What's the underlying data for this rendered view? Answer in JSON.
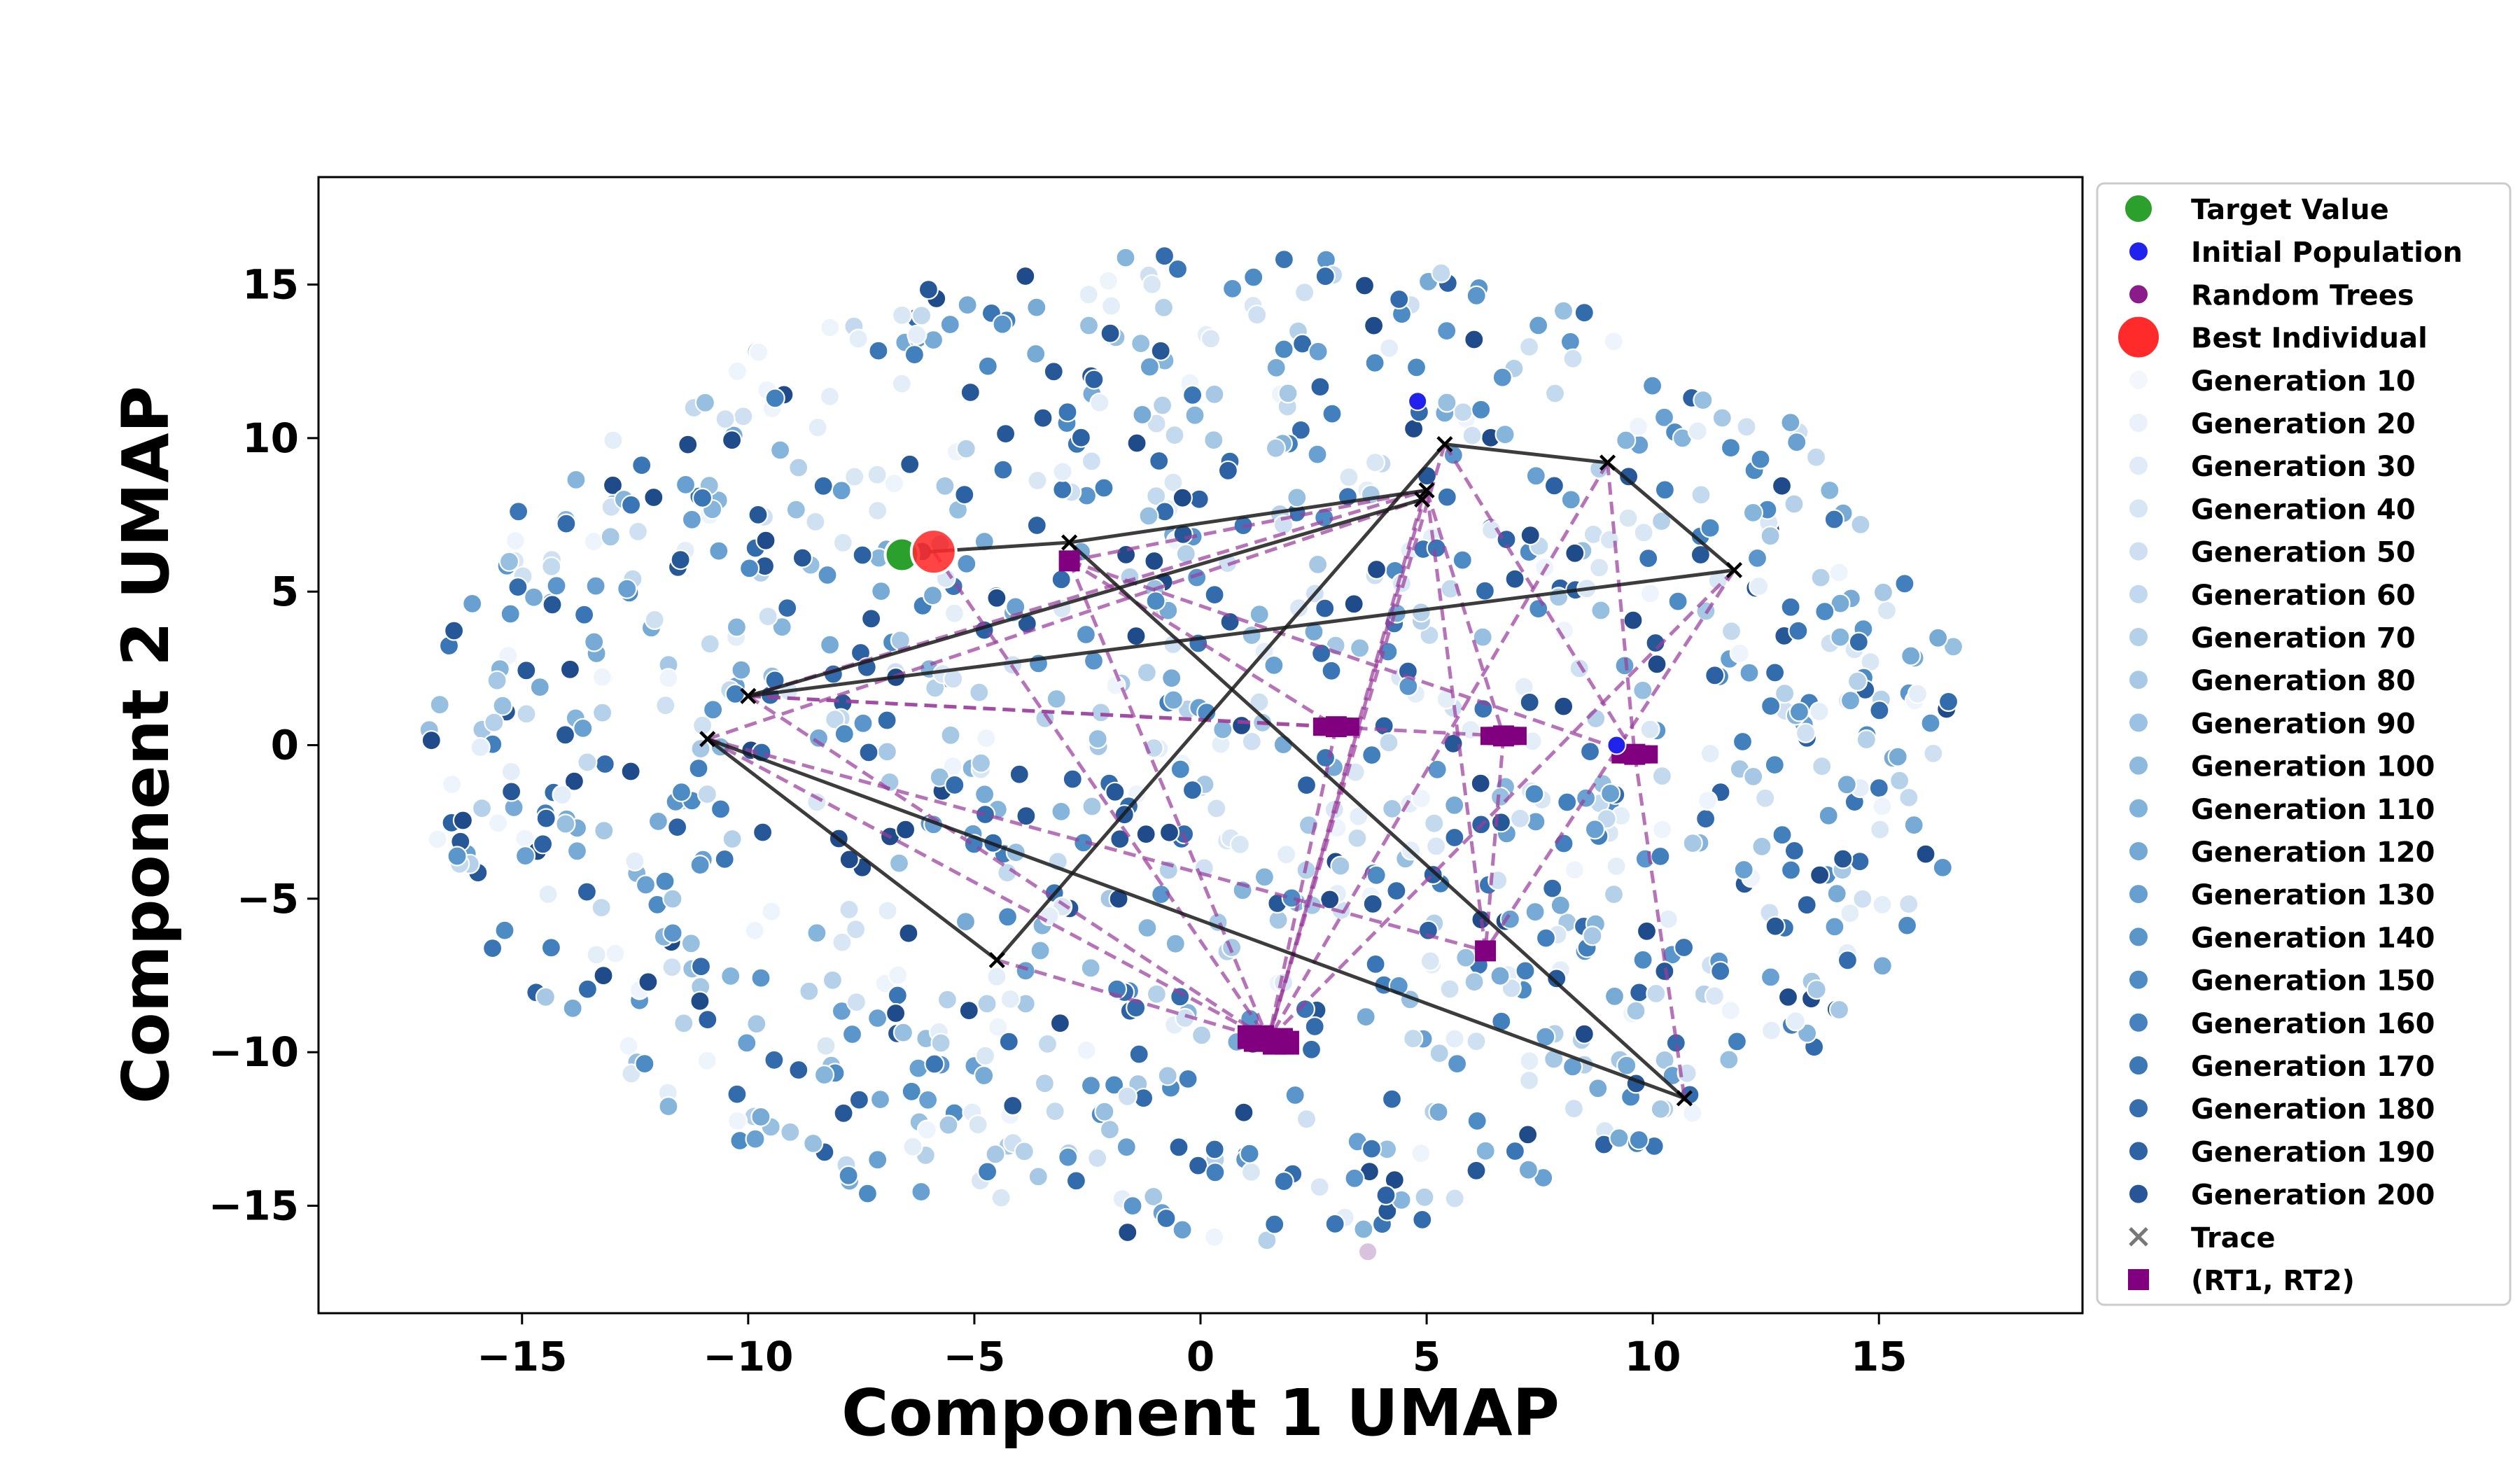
{
  "chart_data": {
    "type": "scatter",
    "xlabel": "Component 1 UMAP",
    "ylabel": "Component 2 UMAP",
    "xlim": [
      -19.5,
      19.5
    ],
    "ylim": [
      -18.5,
      18.5
    ],
    "xticks": [
      -15,
      -10,
      -5,
      0,
      5,
      10,
      15
    ],
    "yticks": [
      -15,
      -10,
      -5,
      0,
      5,
      10,
      15
    ],
    "tick_labels": {
      "x": [
        "−15",
        "−10",
        "−5",
        "0",
        "5",
        "10",
        "15"
      ],
      "y": [
        "−15",
        "−10",
        "−5",
        "0",
        "5",
        "10",
        "15"
      ]
    },
    "grid": false,
    "legend_position": "outside-right",
    "colors": {
      "target": "#2ca02c",
      "initial_population": "#2222ee",
      "random_trees": "#8b1a8b",
      "best": "#ff2a2a",
      "rt_pairs": "#800080",
      "trace": "#1a1a1a",
      "rt_lines": "#9b3d9b",
      "generation_ramp": [
        "#eef4fb",
        "#e4eef8",
        "#d9e7f5",
        "#cfe0f2",
        "#c2d9ee",
        "#b5d1ea",
        "#a6c8e5",
        "#96bfe0",
        "#86b5db",
        "#77abd6",
        "#68a1d1",
        "#5a96cb",
        "#4d8bc4",
        "#4280bd",
        "#3a76b5",
        "#336cad",
        "#2c61a3",
        "#265797",
        "#204b8a"
      ]
    },
    "legend": [
      {
        "label": "Target Value",
        "marker": "circle",
        "color": "#2ca02c"
      },
      {
        "label": "Initial Population",
        "marker": "circle",
        "color": "#2222ee"
      },
      {
        "label": "Random Trees",
        "marker": "circle",
        "color": "#8b1a8b"
      },
      {
        "label": "Best Individual",
        "marker": "circle",
        "color": "#ff2a2a"
      },
      {
        "label": "Generation 10",
        "marker": "circle",
        "color": "#f3f7fc"
      },
      {
        "label": "Generation 20",
        "marker": "circle",
        "color": "#eaf1fa"
      },
      {
        "label": "Generation 30",
        "marker": "circle",
        "color": "#e0ebf7"
      },
      {
        "label": "Generation 40",
        "marker": "circle",
        "color": "#d7e5f4"
      },
      {
        "label": "Generation 50",
        "marker": "circle",
        "color": "#cddff1"
      },
      {
        "label": "Generation 60",
        "marker": "circle",
        "color": "#c1d8ee"
      },
      {
        "label": "Generation 70",
        "marker": "circle",
        "color": "#b5d1ea"
      },
      {
        "label": "Generation 80",
        "marker": "circle",
        "color": "#a8c9e6"
      },
      {
        "label": "Generation 90",
        "marker": "circle",
        "color": "#9bc2e2"
      },
      {
        "label": "Generation 100",
        "marker": "circle",
        "color": "#8ebade"
      },
      {
        "label": "Generation 110",
        "marker": "circle",
        "color": "#81b2da"
      },
      {
        "label": "Generation 120",
        "marker": "circle",
        "color": "#74a9d5"
      },
      {
        "label": "Generation 130",
        "marker": "circle",
        "color": "#67a0d0"
      },
      {
        "label": "Generation 140",
        "marker": "circle",
        "color": "#5b96ca"
      },
      {
        "label": "Generation 150",
        "marker": "circle",
        "color": "#508cc4"
      },
      {
        "label": "Generation 160",
        "marker": "circle",
        "color": "#4682bd"
      },
      {
        "label": "Generation 170",
        "marker": "circle",
        "color": "#3d78b6"
      },
      {
        "label": "Generation 180",
        "marker": "circle",
        "color": "#356dad"
      },
      {
        "label": "Generation 190",
        "marker": "circle",
        "color": "#2d62a3"
      },
      {
        "label": "Generation 200",
        "marker": "circle",
        "color": "#265697"
      },
      {
        "label": "Trace",
        "marker": "x",
        "color": "#777777"
      },
      {
        "label": "(RT1, RT2)",
        "marker": "square",
        "color": "#800080"
      }
    ],
    "target_value": {
      "x": -6.6,
      "y": 6.2
    },
    "best_individual": {
      "x": -5.9,
      "y": 6.3
    },
    "initial_population": [
      {
        "x": 4.8,
        "y": 11.2
      },
      {
        "x": 9.2,
        "y": 0.0
      }
    ],
    "random_trees": [
      {
        "x": 3.7,
        "y": -16.5
      }
    ],
    "trace": {
      "points": [
        {
          "x": -2.9,
          "y": 6.6
        },
        {
          "x": 5.4,
          "y": 9.8
        },
        {
          "x": 9.0,
          "y": 9.2
        },
        {
          "x": 11.8,
          "y": 5.7
        },
        {
          "x": -10.0,
          "y": 1.6
        },
        {
          "x": 4.9,
          "y": 8.0
        },
        {
          "x": 5.0,
          "y": 8.3
        },
        {
          "x": -4.5,
          "y": -7.0
        },
        {
          "x": -10.9,
          "y": 0.2
        },
        {
          "x": 10.7,
          "y": -11.5
        }
      ],
      "segments": [
        [
          -6.0,
          6.3,
          -2.9,
          6.6
        ],
        [
          -2.9,
          6.6,
          5.0,
          8.3
        ],
        [
          -2.9,
          6.6,
          10.7,
          -11.5
        ],
        [
          -10.0,
          1.6,
          4.9,
          8.0
        ],
        [
          -10.0,
          1.6,
          11.8,
          5.7
        ],
        [
          5.4,
          9.8,
          9.0,
          9.2
        ],
        [
          5.4,
          9.8,
          -4.5,
          -7.0
        ],
        [
          9.0,
          9.2,
          11.8,
          5.7
        ],
        [
          -10.9,
          0.2,
          -4.5,
          -7.0
        ],
        [
          -10.9,
          0.2,
          10.7,
          -11.5
        ]
      ]
    },
    "rt_pairs": [
      {
        "x": -2.9,
        "y": 6.0
      },
      {
        "x": 3.0,
        "y": 0.6
      },
      {
        "x": 6.7,
        "y": 0.3
      },
      {
        "x": 9.6,
        "y": -0.3
      },
      {
        "x": 6.3,
        "y": -6.7
      },
      {
        "x": 1.5,
        "y": -9.6
      }
    ],
    "rt_lines": [
      [
        -5.9,
        6.3,
        1.5,
        -9.6
      ],
      [
        -2.9,
        6.0,
        3.0,
        0.6
      ],
      [
        -2.9,
        6.0,
        5.0,
        8.3
      ],
      [
        -2.9,
        6.0,
        1.5,
        -9.6
      ],
      [
        -2.9,
        6.0,
        9.6,
        -0.3
      ],
      [
        -10.0,
        1.6,
        3.0,
        0.6
      ],
      [
        -10.0,
        1.6,
        6.7,
        0.3
      ],
      [
        -10.0,
        1.6,
        1.5,
        -9.6
      ],
      [
        -10.0,
        1.6,
        5.0,
        8.3
      ],
      [
        -10.9,
        0.2,
        1.5,
        -9.6
      ],
      [
        -10.9,
        0.2,
        6.3,
        -6.7
      ],
      [
        -10.9,
        0.2,
        4.9,
        8.0
      ],
      [
        -4.5,
        -7.0,
        1.5,
        -9.6
      ],
      [
        5.0,
        8.3,
        1.5,
        -9.6
      ],
      [
        5.0,
        8.3,
        6.7,
        0.3
      ],
      [
        5.4,
        9.8,
        1.5,
        -9.6
      ],
      [
        5.4,
        9.8,
        9.6,
        -0.3
      ],
      [
        9.0,
        9.2,
        1.5,
        -9.6
      ],
      [
        9.0,
        9.2,
        9.6,
        -0.3
      ],
      [
        11.8,
        5.7,
        6.3,
        -6.7
      ],
      [
        11.8,
        5.7,
        1.5,
        -9.6
      ],
      [
        6.7,
        0.3,
        6.3,
        -6.7
      ],
      [
        9.6,
        -0.3,
        10.7,
        -11.5
      ],
      [
        6.3,
        -6.7,
        5.0,
        8.3
      ],
      [
        3.0,
        0.6,
        1.5,
        -9.6
      ],
      [
        4.9,
        8.0,
        1.5,
        -9.6
      ]
    ],
    "population_summary": {
      "count_approx": 1150,
      "spread_x": [
        -17.5,
        17.5
      ],
      "spread_y": [
        -16,
        16.6
      ]
    }
  }
}
